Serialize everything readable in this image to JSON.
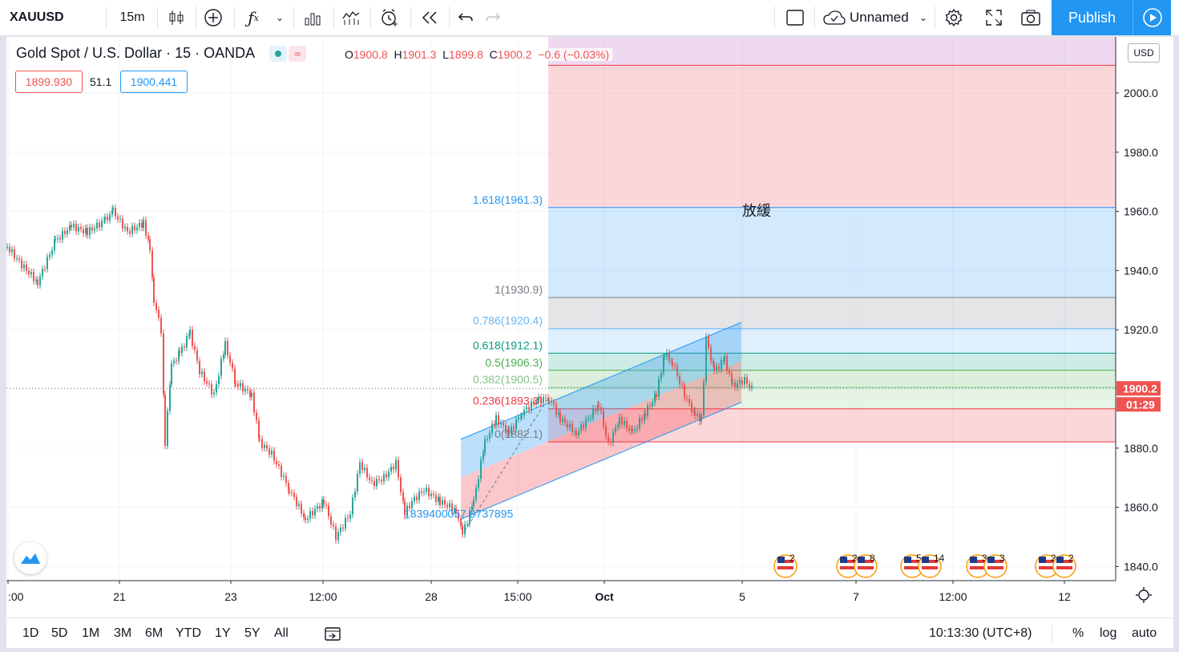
{
  "toolbar": {
    "symbol": "XAUUSD",
    "interval": "15m",
    "layout_name": "Unnamed",
    "publish_label": "Publish"
  },
  "legend": {
    "title": "Gold Spot / U.S. Dollar · 15 · OANDA",
    "o_label": "O",
    "o_value": "1900.8",
    "h_label": "H",
    "h_value": "1901.3",
    "l_label": "L",
    "l_value": "1899.8",
    "c_label": "C",
    "c_value": "1900.2",
    "change": "−0.6 (−0.03%)",
    "bid": "1899.930",
    "spread": "51.1",
    "ask": "1900.441"
  },
  "currency": "USD",
  "price_axis": {
    "ticks": [
      "2000.0",
      "1980.0",
      "1960.0",
      "1940.0",
      "1920.0",
      "1900.0",
      "1880.0",
      "1860.0",
      "1840.0"
    ],
    "current_price": "1900.2",
    "countdown": "01:29"
  },
  "time_axis": {
    "ticks": [
      ":00",
      "21",
      "23",
      "12:00",
      "28",
      "15:00",
      "Oct",
      "5",
      "7",
      "12:00",
      "12"
    ]
  },
  "fib_levels": [
    {
      "label": "1.618(1961.3)",
      "color": "#2196f3"
    },
    {
      "label": "1(1930.9)",
      "color": "#787b86"
    },
    {
      "label": "0.786(1920.4)",
      "color": "#64b5f6"
    },
    {
      "label": "0.618(1912.1)",
      "color": "#089981"
    },
    {
      "label": "0.5(1906.3)",
      "color": "#4caf50"
    },
    {
      "label": "0.382(1900.5)",
      "color": "#81c784"
    },
    {
      "label": "0.236(1893.3)",
      "color": "#f23645"
    },
    {
      "label": "0(1882.1)",
      "color": "#787b86"
    }
  ],
  "annotations": {
    "note": "放緩",
    "measure": "1839400057 9737895"
  },
  "events": [
    "2",
    "2",
    "8",
    "5",
    "14",
    "3",
    "3",
    "2",
    "2"
  ],
  "bottom": {
    "ranges": [
      "1D",
      "5D",
      "1M",
      "3M",
      "6M",
      "YTD",
      "1Y",
      "5Y",
      "All"
    ],
    "clock": "10:13:30 (UTC+8)",
    "percent": "%",
    "log": "log",
    "auto": "auto"
  },
  "colors": {
    "accent": "#2196f3",
    "up": "#26a69a",
    "down": "#ef5350"
  }
}
